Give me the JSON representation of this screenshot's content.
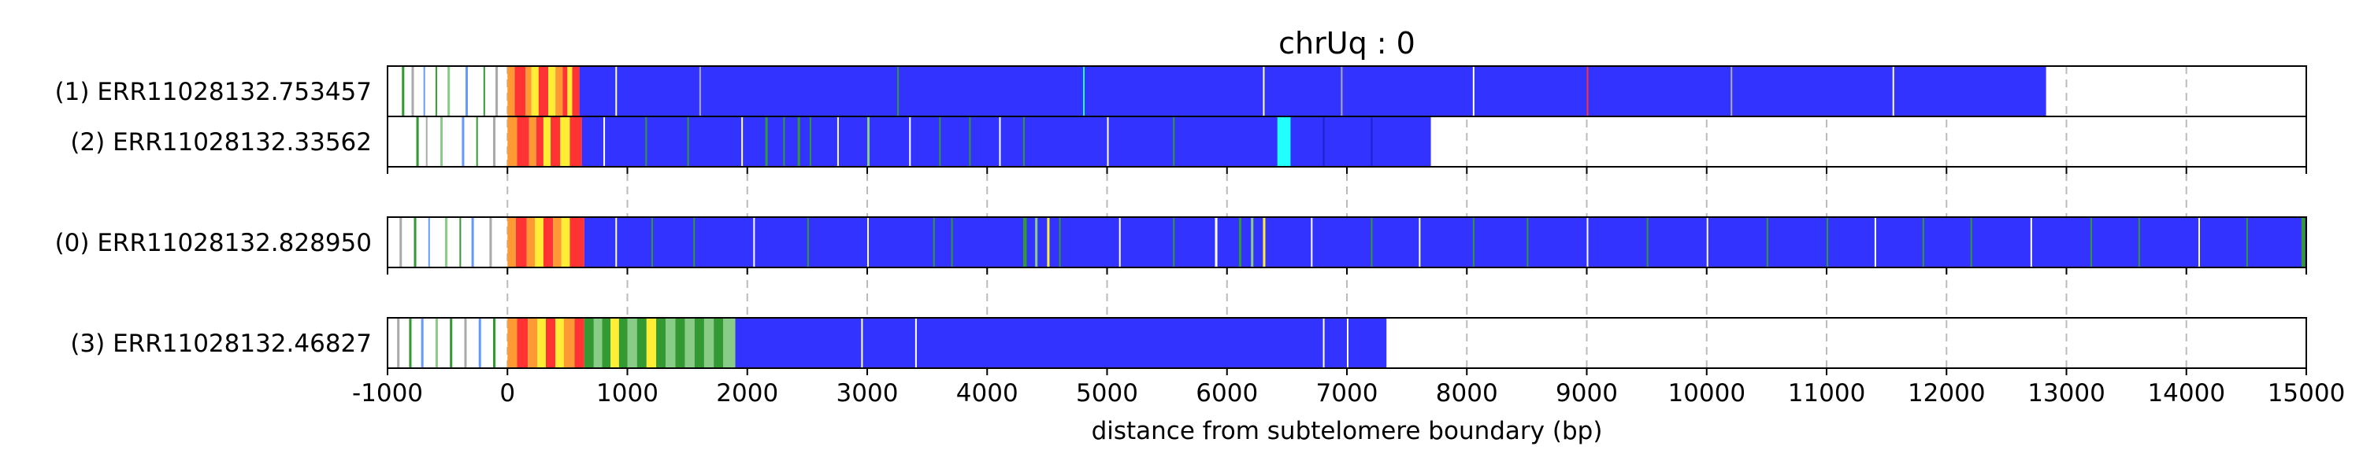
{
  "chart_data": {
    "type": "track",
    "title": "chrUq : 0",
    "xlabel": "distance from subtelomere boundary (bp)",
    "xlim": [
      -1000,
      15000
    ],
    "xticks": [
      -1000,
      0,
      1000,
      2000,
      3000,
      4000,
      5000,
      6000,
      7000,
      8000,
      9000,
      10000,
      11000,
      12000,
      13000,
      14000,
      15000
    ],
    "grid": true,
    "colors": {
      "base": "#3333ff",
      "dark_blue": "#2020cc",
      "green": "#339933",
      "light_green": "#88cc88",
      "yellow": "#ffee33",
      "orange": "#ff9933",
      "red": "#ff3333",
      "cyan": "#22ffff",
      "white": "#ffffff",
      "gray": "#aaaaaa",
      "light_blue": "#6699ff"
    },
    "reads": [
      {
        "label": "(1) ERR11028132.753457",
        "group": 0,
        "start": -1000,
        "end": 12830,
        "blue_start": 600,
        "segments": [
          {
            "start": -880,
            "end": -860,
            "color": "green"
          },
          {
            "start": -800,
            "end": -780,
            "color": "gray"
          },
          {
            "start": -700,
            "end": -690,
            "color": "light_blue"
          },
          {
            "start": -600,
            "end": -590,
            "color": "green"
          },
          {
            "start": -500,
            "end": -480,
            "color": "light_green"
          },
          {
            "start": -350,
            "end": -330,
            "color": "light_blue"
          },
          {
            "start": -200,
            "end": -190,
            "color": "green"
          },
          {
            "start": -100,
            "end": -80,
            "color": "gray"
          },
          {
            "start": 0,
            "end": 60,
            "color": "orange"
          },
          {
            "start": 60,
            "end": 150,
            "color": "red"
          },
          {
            "start": 150,
            "end": 200,
            "color": "orange"
          },
          {
            "start": 200,
            "end": 260,
            "color": "yellow"
          },
          {
            "start": 260,
            "end": 340,
            "color": "red"
          },
          {
            "start": 340,
            "end": 400,
            "color": "yellow"
          },
          {
            "start": 400,
            "end": 460,
            "color": "orange"
          },
          {
            "start": 460,
            "end": 500,
            "color": "red"
          },
          {
            "start": 500,
            "end": 540,
            "color": "yellow"
          },
          {
            "start": 540,
            "end": 600,
            "color": "red"
          },
          {
            "start": 900,
            "end": 910,
            "color": "white"
          },
          {
            "start": 1600,
            "end": 1610,
            "color": "gray"
          },
          {
            "start": 3250,
            "end": 3260,
            "color": "green"
          },
          {
            "start": 4800,
            "end": 4810,
            "color": "cyan"
          },
          {
            "start": 6300,
            "end": 6310,
            "color": "white"
          },
          {
            "start": 6950,
            "end": 6960,
            "color": "gray"
          },
          {
            "start": 8050,
            "end": 8060,
            "color": "white"
          },
          {
            "start": 9000,
            "end": 9010,
            "color": "red"
          },
          {
            "start": 10200,
            "end": 10210,
            "color": "gray"
          },
          {
            "start": 11550,
            "end": 11560,
            "color": "white"
          }
        ]
      },
      {
        "label": "(2) ERR11028132.33562",
        "group": 0,
        "start": -1000,
        "end": 7700,
        "blue_start": 620,
        "segments": [
          {
            "start": -760,
            "end": -740,
            "color": "green"
          },
          {
            "start": -680,
            "end": -670,
            "color": "gray"
          },
          {
            "start": -560,
            "end": -540,
            "color": "light_green"
          },
          {
            "start": -380,
            "end": -360,
            "color": "light_blue"
          },
          {
            "start": -260,
            "end": -250,
            "color": "green"
          },
          {
            "start": -120,
            "end": -100,
            "color": "gray"
          },
          {
            "start": 0,
            "end": 80,
            "color": "orange"
          },
          {
            "start": 80,
            "end": 180,
            "color": "red"
          },
          {
            "start": 180,
            "end": 240,
            "color": "orange"
          },
          {
            "start": 240,
            "end": 300,
            "color": "red"
          },
          {
            "start": 300,
            "end": 360,
            "color": "yellow"
          },
          {
            "start": 360,
            "end": 440,
            "color": "red"
          },
          {
            "start": 440,
            "end": 520,
            "color": "yellow"
          },
          {
            "start": 520,
            "end": 620,
            "color": "red"
          },
          {
            "start": 800,
            "end": 810,
            "color": "white"
          },
          {
            "start": 1150,
            "end": 1160,
            "color": "green"
          },
          {
            "start": 1500,
            "end": 1510,
            "color": "green"
          },
          {
            "start": 1950,
            "end": 1960,
            "color": "white"
          },
          {
            "start": 2150,
            "end": 2170,
            "color": "green"
          },
          {
            "start": 2300,
            "end": 2310,
            "color": "green"
          },
          {
            "start": 2420,
            "end": 2440,
            "color": "green"
          },
          {
            "start": 2520,
            "end": 2530,
            "color": "green"
          },
          {
            "start": 2750,
            "end": 2760,
            "color": "white"
          },
          {
            "start": 3000,
            "end": 3020,
            "color": "light_green"
          },
          {
            "start": 3350,
            "end": 3360,
            "color": "white"
          },
          {
            "start": 3600,
            "end": 3610,
            "color": "green"
          },
          {
            "start": 3850,
            "end": 3860,
            "color": "green"
          },
          {
            "start": 4100,
            "end": 4110,
            "color": "white"
          },
          {
            "start": 4300,
            "end": 4310,
            "color": "green"
          },
          {
            "start": 5000,
            "end": 5010,
            "color": "white"
          },
          {
            "start": 5550,
            "end": 5560,
            "color": "green"
          },
          {
            "start": 6420,
            "end": 6530,
            "color": "cyan"
          },
          {
            "start": 6800,
            "end": 6810,
            "color": "dark_blue"
          },
          {
            "start": 7200,
            "end": 7210,
            "color": "dark_blue"
          }
        ]
      },
      {
        "label": "(0) ERR11028132.828950",
        "group": 1,
        "start": -1000,
        "end": 15000,
        "blue_start": 640,
        "segments": [
          {
            "start": -900,
            "end": -880,
            "color": "gray"
          },
          {
            "start": -780,
            "end": -760,
            "color": "green"
          },
          {
            "start": -660,
            "end": -650,
            "color": "light_blue"
          },
          {
            "start": -520,
            "end": -500,
            "color": "light_green"
          },
          {
            "start": -400,
            "end": -390,
            "color": "green"
          },
          {
            "start": -300,
            "end": -280,
            "color": "light_blue"
          },
          {
            "start": -150,
            "end": -130,
            "color": "gray"
          },
          {
            "start": 0,
            "end": 70,
            "color": "orange"
          },
          {
            "start": 70,
            "end": 160,
            "color": "red"
          },
          {
            "start": 160,
            "end": 230,
            "color": "orange"
          },
          {
            "start": 230,
            "end": 300,
            "color": "yellow"
          },
          {
            "start": 300,
            "end": 380,
            "color": "red"
          },
          {
            "start": 380,
            "end": 450,
            "color": "orange"
          },
          {
            "start": 450,
            "end": 520,
            "color": "yellow"
          },
          {
            "start": 520,
            "end": 640,
            "color": "red"
          },
          {
            "start": 900,
            "end": 910,
            "color": "white"
          },
          {
            "start": 1200,
            "end": 1210,
            "color": "green"
          },
          {
            "start": 1550,
            "end": 1560,
            "color": "green"
          },
          {
            "start": 2050,
            "end": 2060,
            "color": "white"
          },
          {
            "start": 2500,
            "end": 2510,
            "color": "green"
          },
          {
            "start": 3000,
            "end": 3010,
            "color": "white"
          },
          {
            "start": 3550,
            "end": 3560,
            "color": "green"
          },
          {
            "start": 3700,
            "end": 3710,
            "color": "green"
          },
          {
            "start": 4300,
            "end": 4330,
            "color": "green"
          },
          {
            "start": 4400,
            "end": 4420,
            "color": "light_green"
          },
          {
            "start": 4500,
            "end": 4520,
            "color": "yellow"
          },
          {
            "start": 4600,
            "end": 4610,
            "color": "green"
          },
          {
            "start": 5100,
            "end": 5110,
            "color": "white"
          },
          {
            "start": 5550,
            "end": 5560,
            "color": "green"
          },
          {
            "start": 5900,
            "end": 5920,
            "color": "white"
          },
          {
            "start": 6100,
            "end": 6120,
            "color": "green"
          },
          {
            "start": 6200,
            "end": 6220,
            "color": "light_green"
          },
          {
            "start": 6300,
            "end": 6320,
            "color": "yellow"
          },
          {
            "start": 6700,
            "end": 6710,
            "color": "white"
          },
          {
            "start": 7200,
            "end": 7210,
            "color": "green"
          },
          {
            "start": 7600,
            "end": 7610,
            "color": "white"
          },
          {
            "start": 8050,
            "end": 8060,
            "color": "green"
          },
          {
            "start": 8500,
            "end": 8510,
            "color": "green"
          },
          {
            "start": 9000,
            "end": 9010,
            "color": "white"
          },
          {
            "start": 9500,
            "end": 9510,
            "color": "green"
          },
          {
            "start": 10000,
            "end": 10010,
            "color": "white"
          },
          {
            "start": 10500,
            "end": 10510,
            "color": "green"
          },
          {
            "start": 11000,
            "end": 11010,
            "color": "green"
          },
          {
            "start": 11400,
            "end": 11410,
            "color": "white"
          },
          {
            "start": 11800,
            "end": 11810,
            "color": "green"
          },
          {
            "start": 12200,
            "end": 12210,
            "color": "green"
          },
          {
            "start": 12700,
            "end": 12710,
            "color": "white"
          },
          {
            "start": 13200,
            "end": 13210,
            "color": "green"
          },
          {
            "start": 13600,
            "end": 13610,
            "color": "green"
          },
          {
            "start": 14100,
            "end": 14110,
            "color": "white"
          },
          {
            "start": 14500,
            "end": 14510,
            "color": "green"
          },
          {
            "start": 14960,
            "end": 14990,
            "color": "green"
          }
        ]
      },
      {
        "label": "(3) ERR11028132.46827",
        "group": 2,
        "start": -1000,
        "end": 7330,
        "blue_start": 1900,
        "segments": [
          {
            "start": -920,
            "end": -900,
            "color": "gray"
          },
          {
            "start": -820,
            "end": -800,
            "color": "green"
          },
          {
            "start": -720,
            "end": -700,
            "color": "light_blue"
          },
          {
            "start": -600,
            "end": -580,
            "color": "light_green"
          },
          {
            "start": -480,
            "end": -460,
            "color": "green"
          },
          {
            "start": -360,
            "end": -340,
            "color": "gray"
          },
          {
            "start": -240,
            "end": -220,
            "color": "light_blue"
          },
          {
            "start": -120,
            "end": -100,
            "color": "green"
          },
          {
            "start": 0,
            "end": 80,
            "color": "orange"
          },
          {
            "start": 80,
            "end": 170,
            "color": "red"
          },
          {
            "start": 170,
            "end": 250,
            "color": "orange"
          },
          {
            "start": 250,
            "end": 320,
            "color": "yellow"
          },
          {
            "start": 320,
            "end": 400,
            "color": "red"
          },
          {
            "start": 400,
            "end": 470,
            "color": "yellow"
          },
          {
            "start": 470,
            "end": 560,
            "color": "orange"
          },
          {
            "start": 560,
            "end": 640,
            "color": "red"
          },
          {
            "start": 640,
            "end": 720,
            "color": "green"
          },
          {
            "start": 720,
            "end": 790,
            "color": "light_green"
          },
          {
            "start": 790,
            "end": 860,
            "color": "green"
          },
          {
            "start": 860,
            "end": 930,
            "color": "yellow"
          },
          {
            "start": 930,
            "end": 1000,
            "color": "green"
          },
          {
            "start": 1000,
            "end": 1080,
            "color": "light_green"
          },
          {
            "start": 1080,
            "end": 1160,
            "color": "green"
          },
          {
            "start": 1160,
            "end": 1240,
            "color": "yellow"
          },
          {
            "start": 1240,
            "end": 1320,
            "color": "green"
          },
          {
            "start": 1320,
            "end": 1400,
            "color": "light_green"
          },
          {
            "start": 1400,
            "end": 1480,
            "color": "green"
          },
          {
            "start": 1480,
            "end": 1560,
            "color": "light_green"
          },
          {
            "start": 1560,
            "end": 1640,
            "color": "green"
          },
          {
            "start": 1640,
            "end": 1720,
            "color": "light_green"
          },
          {
            "start": 1720,
            "end": 1800,
            "color": "green"
          },
          {
            "start": 1800,
            "end": 1900,
            "color": "light_green"
          },
          {
            "start": 2950,
            "end": 2960,
            "color": "white"
          },
          {
            "start": 3400,
            "end": 3410,
            "color": "white"
          },
          {
            "start": 6800,
            "end": 6810,
            "color": "white"
          },
          {
            "start": 7000,
            "end": 7010,
            "color": "white"
          }
        ]
      }
    ]
  }
}
